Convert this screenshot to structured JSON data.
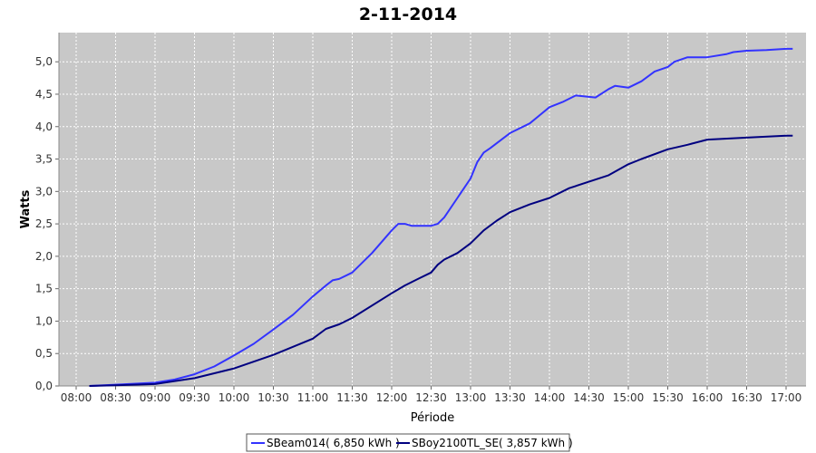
{
  "chart_data": {
    "type": "line",
    "title": "2-11-2014",
    "xlabel": "Période",
    "ylabel": "Watts",
    "ylim": [
      0,
      5.45
    ],
    "y_ticks": [
      "0,0",
      "0,5",
      "1,0",
      "1,5",
      "2,0",
      "2,5",
      "3,0",
      "3,5",
      "4,0",
      "4,5",
      "5,0"
    ],
    "x_tick_labels": [
      "08:00",
      "08:30",
      "09:00",
      "09:30",
      "10:00",
      "10:30",
      "11:00",
      "11:30",
      "12:00",
      "12:30",
      "13:00",
      "13:30",
      "14:00",
      "14:30",
      "15:00",
      "15:30",
      "16:00",
      "16:30",
      "17:00"
    ],
    "grid": true,
    "legend_position": "bottom",
    "series": [
      {
        "name": "SBeam014( 6,850 kWh )",
        "color": "#3333ff",
        "x": [
          "08:10",
          "08:30",
          "09:00",
          "09:15",
          "09:30",
          "09:45",
          "10:00",
          "10:15",
          "10:30",
          "10:45",
          "11:00",
          "11:10",
          "11:15",
          "11:20",
          "11:30",
          "11:45",
          "12:00",
          "12:05",
          "12:10",
          "12:15",
          "12:30",
          "12:35",
          "12:40",
          "12:50",
          "13:00",
          "13:05",
          "13:10",
          "13:15",
          "13:30",
          "13:45",
          "14:00",
          "14:10",
          "14:20",
          "14:35",
          "14:45",
          "14:50",
          "15:00",
          "15:10",
          "15:20",
          "15:30",
          "15:35",
          "15:45",
          "16:00",
          "16:15",
          "16:20",
          "16:30",
          "16:45",
          "17:00",
          "17:05"
        ],
        "y": [
          0.0,
          0.02,
          0.05,
          0.1,
          0.18,
          0.3,
          0.47,
          0.65,
          0.87,
          1.1,
          1.38,
          1.55,
          1.63,
          1.65,
          1.75,
          2.05,
          2.4,
          2.5,
          2.5,
          2.47,
          2.47,
          2.5,
          2.6,
          2.9,
          3.2,
          3.45,
          3.6,
          3.67,
          3.9,
          4.05,
          4.3,
          4.38,
          4.48,
          4.45,
          4.58,
          4.63,
          4.6,
          4.7,
          4.85,
          4.92,
          5.0,
          5.07,
          5.07,
          5.12,
          5.15,
          5.17,
          5.18,
          5.2,
          5.2
        ]
      },
      {
        "name": "SBoy2100TL_SE( 3,857 kWh )",
        "color": "#000080",
        "x": [
          "08:10",
          "08:30",
          "09:00",
          "09:30",
          "10:00",
          "10:30",
          "11:00",
          "11:10",
          "11:20",
          "11:30",
          "12:00",
          "12:10",
          "12:20",
          "12:30",
          "12:35",
          "12:40",
          "12:50",
          "13:00",
          "13:10",
          "13:20",
          "13:30",
          "13:45",
          "14:00",
          "14:15",
          "14:30",
          "14:45",
          "15:00",
          "15:10",
          "15:30",
          "15:45",
          "16:00",
          "16:30",
          "17:00",
          "17:05"
        ],
        "y": [
          0.0,
          0.01,
          0.03,
          0.12,
          0.27,
          0.48,
          0.73,
          0.88,
          0.95,
          1.05,
          1.43,
          1.55,
          1.65,
          1.75,
          1.87,
          1.95,
          2.05,
          2.2,
          2.4,
          2.55,
          2.68,
          2.8,
          2.9,
          3.05,
          3.15,
          3.25,
          3.42,
          3.5,
          3.65,
          3.72,
          3.8,
          3.83,
          3.86,
          3.86
        ]
      }
    ]
  }
}
